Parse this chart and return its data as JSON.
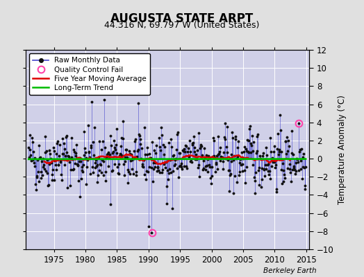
{
  "title": "AUGUSTA STATE ARPT",
  "subtitle": "44.316 N, 69.797 W (United States)",
  "ylabel": "Temperature Anomaly (°C)",
  "watermark": "Berkeley Earth",
  "ylim": [
    -10,
    12
  ],
  "xlim": [
    1970.5,
    2015.5
  ],
  "yticks": [
    -10,
    -8,
    -6,
    -4,
    -2,
    0,
    2,
    4,
    6,
    8,
    10,
    12
  ],
  "xticks": [
    1975,
    1980,
    1985,
    1990,
    1995,
    2000,
    2005,
    2010,
    2015
  ],
  "fig_bg_color": "#e0e0e0",
  "plot_bg_color": "#d0d0e8",
  "grid_color": "#ffffff",
  "line_color": "#4444cc",
  "dot_color": "#111111",
  "ma_color": "#dd0000",
  "trend_color": "#00bb00",
  "qc_color": "#ff44aa",
  "seed": 42,
  "n_months": 528,
  "start_year": 1971.0,
  "qc_fail_points": [
    [
      1990.58,
      -8.2
    ],
    [
      2013.75,
      3.9
    ]
  ],
  "trend_coefs": [
    0.35,
    0.013
  ]
}
